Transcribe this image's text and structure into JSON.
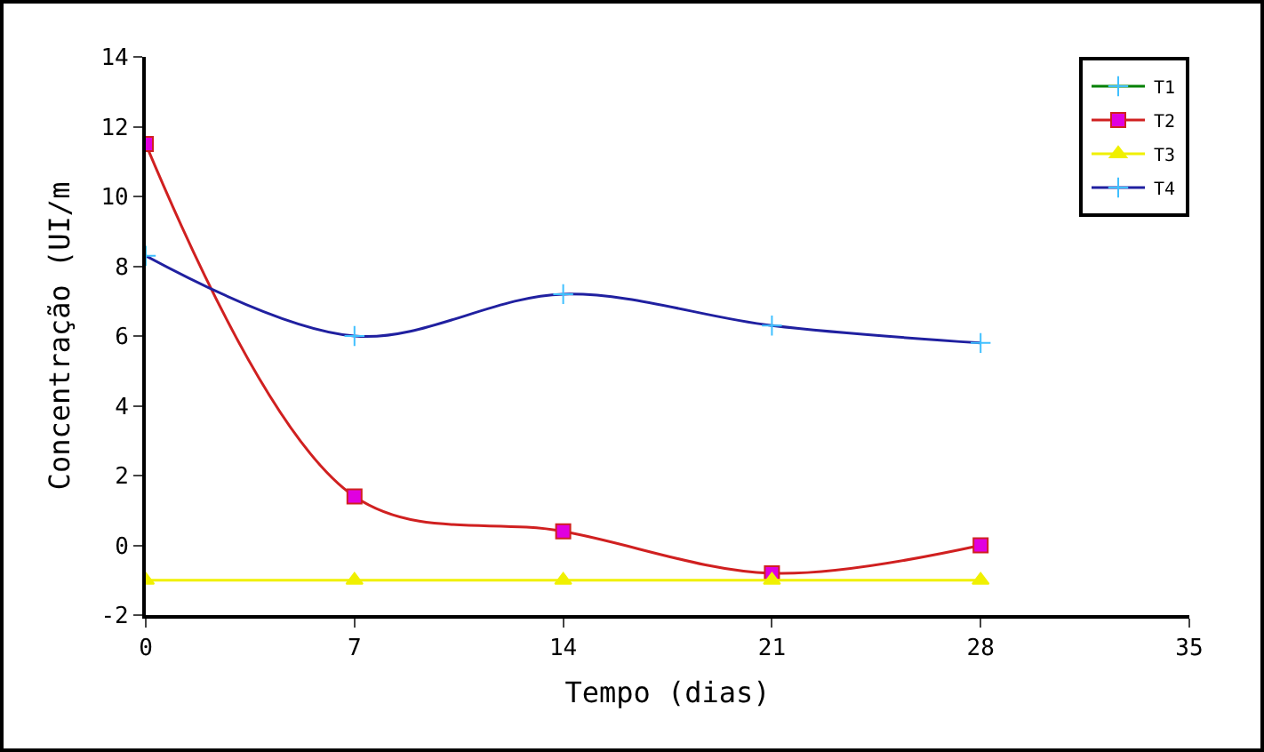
{
  "chart_data": {
    "type": "line",
    "xlabel": "Tempo (dias)",
    "ylabel": "Concentração (UI/m",
    "x": [
      0,
      7,
      14,
      21,
      28
    ],
    "series": [
      {
        "name": "T1",
        "color": "#008000",
        "marker": "cross",
        "values": [
          null,
          null,
          null,
          null,
          null
        ]
      },
      {
        "name": "T2",
        "color": "#d02020",
        "marker": "square",
        "values": [
          11.5,
          1.4,
          0.4,
          -0.8,
          0
        ]
      },
      {
        "name": "T3",
        "color": "#f0f000",
        "marker": "triangle",
        "values": [
          -1,
          -1,
          -1,
          -1,
          -1
        ]
      },
      {
        "name": "T4",
        "color": "#2020a0",
        "marker": "cross",
        "values": [
          8.3,
          6,
          7.2,
          6.3,
          5.8
        ]
      }
    ],
    "xlim": [
      0,
      35
    ],
    "xticks": [
      0,
      7,
      14,
      21,
      28,
      35
    ],
    "ylim": [
      -2,
      14
    ],
    "yticks": [
      -2,
      0,
      2,
      4,
      6,
      8,
      10,
      12,
      14
    ],
    "legend": "top right"
  }
}
